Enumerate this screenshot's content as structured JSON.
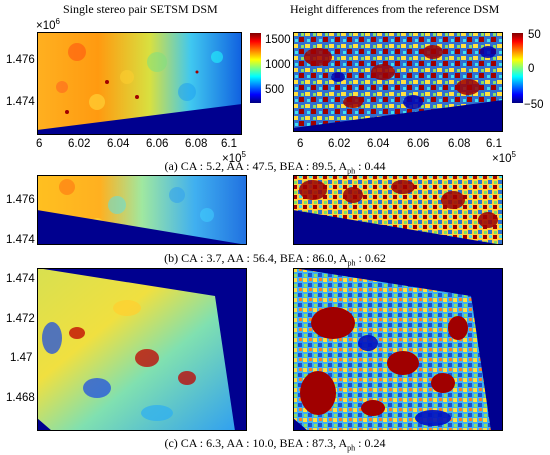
{
  "column_titles": {
    "left": "Single stereo pair SETSM DSM",
    "right": "Height differences from the reference DSM"
  },
  "panel_a": {
    "y_exponent": "×10",
    "y_exponent_power": "6",
    "y_ticks": [
      "1.476",
      "1.474"
    ],
    "x_ticks": [
      "6",
      "6.02",
      "6.04",
      "6.06",
      "6.08",
      "6.1"
    ],
    "x_exponent": "×10",
    "x_exponent_power": "5",
    "colorbar_left_ticks": [
      "1500",
      "1000",
      "500"
    ],
    "colorbar_right_ticks": [
      "50",
      "0",
      "−50"
    ],
    "caption": "(a) CA : 5.2, AA : 47.5, BEA : 89.5, A",
    "caption_sub": "ph",
    "caption_end": " : 0.44"
  },
  "panel_b": {
    "y_ticks": [
      "1.476",
      "1.474"
    ],
    "caption": "(b) CA : 3.7, AA : 56.4, BEA : 86.0, A",
    "caption_sub": "ph",
    "caption_end": " : 0.62"
  },
  "panel_c": {
    "y_ticks": [
      "1.474",
      "1.472",
      "1.47",
      "1.468"
    ],
    "caption": "(c) CA : 6.3, AA : 10.0, BEA : 87.3, A",
    "caption_sub": "ph",
    "caption_end": " : 0.24"
  }
}
